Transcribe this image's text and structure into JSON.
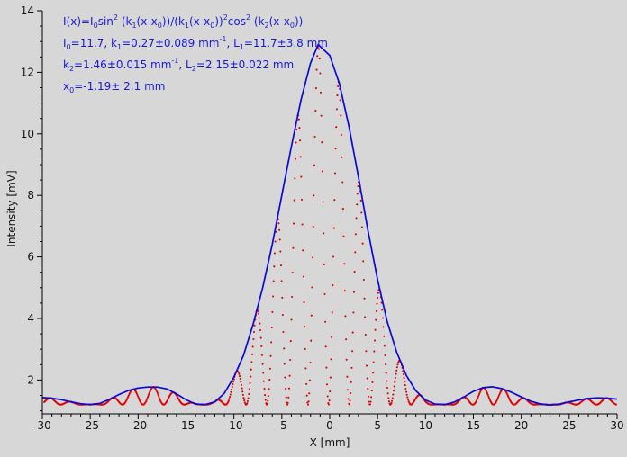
{
  "colors": {
    "background": "#d7d7d7",
    "fit_curve": "#0a0ad2",
    "measured_points": "#dd0000",
    "annotation_text": "#1a1ad6",
    "axis": "#000000"
  },
  "annotation": {
    "line1": {
      "a": "I(x)=I",
      "a_sub": "0",
      "b": "sin",
      "b_sup": "2",
      "c": " (k",
      "c_sub": "1",
      "d": "(x-x",
      "d_sub": "0",
      "e": "))/(k",
      "e_sub": "1",
      "f": "(x-x",
      "f_sub": "0",
      "g": "))",
      "g_sup": "2",
      "h": "cos",
      "h_sup": "2",
      "i": " (k",
      "i_sub": "2",
      "j": "(x-x",
      "j_sub": "0",
      "k": "))"
    },
    "line2": {
      "a": "I",
      "a_sub": "0",
      "b": "=11.7,  k",
      "b_sub": "1",
      "c": "=0.27±0.089 mm",
      "c_sup": "-1",
      "d": ",   L",
      "d_sub": "1",
      "e": "=11.7±3.8 mm"
    },
    "line3": {
      "a": "k",
      "a_sub": "2",
      "b": "=1.46±0.015 mm",
      "b_sup": "-1",
      "c": ",   L",
      "c_sub": "2",
      "d": "=2.15±0.022 mm"
    },
    "line4": {
      "a": "x",
      "a_sub": "0",
      "b": "=-1.19±  2.1 mm"
    }
  },
  "chart_data": {
    "type": "scatter",
    "title": "",
    "xlabel": "X [mm]",
    "ylabel": "Intensity [mV]",
    "xlim": [
      -30,
      30
    ],
    "ylim": [
      0.9,
      14
    ],
    "x_ticks": [
      -30,
      -25,
      -20,
      -15,
      -10,
      -5,
      0,
      5,
      10,
      15,
      20,
      25,
      30
    ],
    "y_ticks": [
      2,
      4,
      6,
      8,
      10,
      12,
      14
    ],
    "grid": false,
    "fit_model": {
      "I0": 11.7,
      "k1": 0.27,
      "k2": 1.46,
      "x0": -1.19,
      "baseline": 1.2
    },
    "series": [
      {
        "name": "fit",
        "style": "line",
        "x": [
          -30,
          -29,
          -28,
          -27,
          -26,
          -25,
          -24,
          -23,
          -22,
          -21,
          -20,
          -19,
          -18,
          -17,
          -16,
          -15,
          -14,
          -13,
          -12,
          -11,
          -10,
          -9,
          -8,
          -7,
          -6,
          -5,
          -4,
          -3,
          -2,
          -1.2,
          0,
          1,
          2,
          3,
          4,
          5,
          6,
          7,
          8,
          9,
          10,
          11,
          12,
          13,
          14,
          15,
          16,
          17,
          18,
          19,
          20,
          21,
          22,
          23,
          24,
          25,
          26,
          27,
          28,
          29,
          30
        ],
        "y": [
          1.43,
          1.41,
          1.36,
          1.29,
          1.23,
          1.2,
          1.24,
          1.37,
          1.53,
          1.66,
          1.74,
          1.77,
          1.77,
          1.71,
          1.55,
          1.36,
          1.22,
          1.2,
          1.29,
          1.57,
          2.1,
          2.8,
          3.8,
          5.0,
          6.4,
          8.0,
          9.6,
          11.1,
          12.3,
          12.9,
          12.55,
          11.65,
          10.25,
          8.6,
          6.85,
          5.25,
          3.9,
          2.9,
          2.15,
          1.65,
          1.35,
          1.22,
          1.2,
          1.28,
          1.45,
          1.63,
          1.75,
          1.78,
          1.72,
          1.6,
          1.45,
          1.31,
          1.22,
          1.19,
          1.22,
          1.29,
          1.35,
          1.4,
          1.42,
          1.41,
          1.38
        ]
      },
      {
        "name": "measured",
        "style": "points",
        "comment_free_generation": true
      }
    ]
  }
}
